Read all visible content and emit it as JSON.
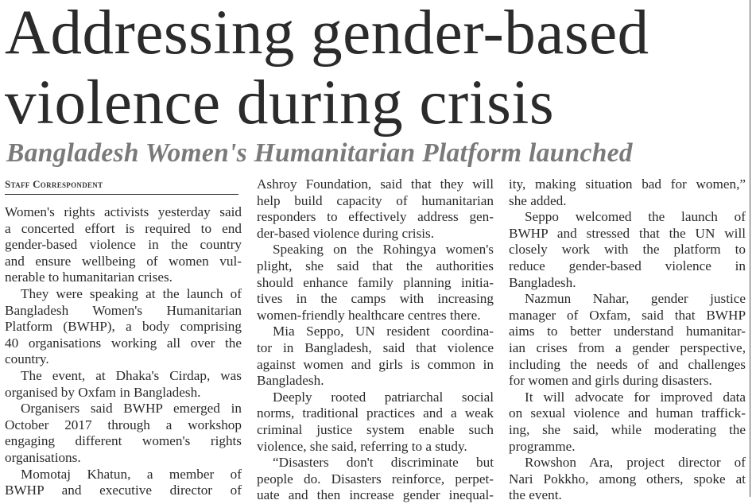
{
  "headline": {
    "line1": "Addressing gender-based",
    "line2": "violence during crisis"
  },
  "subheadline": "Bangladesh Women's Humanitarian Platform launched",
  "byline": "Staff Correspondent",
  "columns": [
    {
      "paragraphs": [
        {
          "indent": false,
          "lines": [
            "Women's rights activists yesterday said",
            "a concerted effort is required to end",
            "gender-based violence in the country",
            "and ensure wellbeing of women vul-",
            "nerable to humanitarian crises."
          ]
        },
        {
          "indent": true,
          "lines": [
            "They were speaking at the launch of",
            "Bangladesh Women's Humanitarian",
            "Platform (BWHP), a body comprising",
            "40 organisations working all over the",
            "country."
          ]
        },
        {
          "indent": true,
          "lines": [
            "The event, at Dhaka's Cirdap, was",
            "organised by Oxfam in Bangladesh."
          ]
        },
        {
          "indent": true,
          "lines": [
            "Organisers said BWHP emerged in",
            "October 2017 through a workshop",
            "engaging different women's rights",
            "organisations."
          ]
        },
        {
          "indent": true,
          "continues": true,
          "lines": [
            "Momotaj Khatun, a member of",
            "BWHP and executive director of"
          ]
        }
      ]
    },
    {
      "paragraphs": [
        {
          "indent": false,
          "lines": [
            "Ashroy Foundation, said that they will",
            "help build capacity of humanitarian",
            "responders to effectively address gen-",
            "der-based violence during crisis."
          ]
        },
        {
          "indent": true,
          "lines": [
            "Speaking on the Rohingya women's",
            "plight, she said that the authorities",
            "should enhance family planning initia-",
            "tives in the camps with increasing",
            "women-friendly healthcare centres there."
          ]
        },
        {
          "indent": true,
          "lines": [
            "Mia Seppo, UN resident coordina-",
            "tor in Bangladesh, said that violence",
            "against women and girls is common in",
            "Bangladesh."
          ]
        },
        {
          "indent": true,
          "lines": [
            "Deeply rooted patriarchal social",
            "norms, traditional practices and a weak",
            "criminal justice system enable such",
            "violence, she said, referring to a study."
          ]
        },
        {
          "indent": true,
          "continues": true,
          "lines": [
            "“Disasters don't discriminate but",
            "people do. Disasters reinforce, perpet-",
            "uate and then increase gender inequal-"
          ]
        }
      ]
    },
    {
      "paragraphs": [
        {
          "indent": false,
          "lines": [
            "ity, making situation bad for women,”",
            "she added."
          ]
        },
        {
          "indent": true,
          "lines": [
            "Seppo welcomed the launch of",
            "BWHP and stressed that the UN will",
            "closely work with the platform to",
            "reduce gender-based violence in",
            "Bangladesh."
          ]
        },
        {
          "indent": true,
          "lines": [
            "Nazmun Nahar, gender justice",
            "manager of Oxfam, said that BWHP",
            "aims to better understand humanitar-",
            "ian crises from a gender perspective,",
            "including the needs of and challenges",
            "for women and girls during disasters."
          ]
        },
        {
          "indent": true,
          "lines": [
            "It will advocate for improved data",
            "on sexual violence and human traffick-",
            "ing, she said, while moderating the",
            "programme."
          ]
        },
        {
          "indent": true,
          "lines": [
            "Rowshon Ara, project director of",
            "Nari Pokkho, among others, spoke at",
            "the event."
          ]
        }
      ]
    }
  ]
}
